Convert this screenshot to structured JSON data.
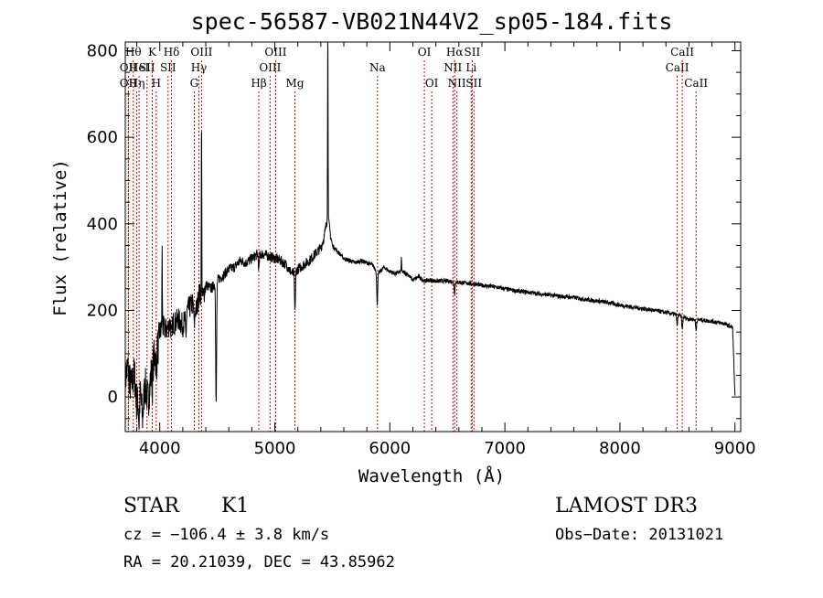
{
  "chart_data": {
    "type": "line",
    "title": "spec-56587-VB021N44V2_sp05-184.fits",
    "xlabel": "Wavelength (Å)",
    "ylabel": "Flux (relative)",
    "xlim": [
      3700,
      9050
    ],
    "ylim": [
      -80,
      820
    ],
    "xticks": [
      4000,
      5000,
      6000,
      7000,
      8000,
      9000
    ],
    "xtick_labels": [
      "4000",
      "5000",
      "6000",
      "7000",
      "8000",
      "9000"
    ],
    "yticks": [
      0,
      200,
      400,
      600,
      800
    ],
    "ytick_labels": [
      "0",
      "200",
      "400",
      "600",
      "800"
    ],
    "line_color": "#000000",
    "marker_color": "#cc0000",
    "series_anchors": [
      [
        3700,
        40
      ],
      [
        3720,
        70
      ],
      [
        3750,
        20
      ],
      [
        3780,
        55
      ],
      [
        3800,
        -20
      ],
      [
        3830,
        10
      ],
      [
        3850,
        -50
      ],
      [
        3870,
        30
      ],
      [
        3900,
        -10
      ],
      [
        3930,
        70
      ],
      [
        3960,
        100
      ],
      [
        3990,
        120
      ],
      [
        4000,
        150
      ],
      [
        4030,
        160
      ],
      [
        4060,
        155
      ],
      [
        4100,
        175
      ],
      [
        4130,
        170
      ],
      [
        4160,
        180
      ],
      [
        4200,
        165
      ],
      [
        4240,
        200
      ],
      [
        4280,
        215
      ],
      [
        4320,
        200
      ],
      [
        4340,
        240
      ],
      [
        4370,
        225
      ],
      [
        4400,
        260
      ],
      [
        4450,
        250
      ],
      [
        4500,
        270
      ],
      [
        4550,
        280
      ],
      [
        4600,
        295
      ],
      [
        4650,
        300
      ],
      [
        4700,
        315
      ],
      [
        4750,
        310
      ],
      [
        4800,
        320
      ],
      [
        4850,
        330
      ],
      [
        4900,
        330
      ],
      [
        4950,
        325
      ],
      [
        5000,
        320
      ],
      [
        5050,
        315
      ],
      [
        5100,
        305
      ],
      [
        5150,
        285
      ],
      [
        5200,
        295
      ],
      [
        5250,
        305
      ],
      [
        5300,
        315
      ],
      [
        5350,
        330
      ],
      [
        5400,
        345
      ],
      [
        5430,
        370
      ],
      [
        5460,
        420
      ],
      [
        5480,
        380
      ],
      [
        5500,
        350
      ],
      [
        5550,
        335
      ],
      [
        5600,
        320
      ],
      [
        5650,
        315
      ],
      [
        5700,
        310
      ],
      [
        5750,
        315
      ],
      [
        5800,
        310
      ],
      [
        5850,
        305
      ],
      [
        5900,
        285
      ],
      [
        5950,
        300
      ],
      [
        6000,
        290
      ],
      [
        6050,
        285
      ],
      [
        6100,
        290
      ],
      [
        6150,
        285
      ],
      [
        6200,
        270
      ],
      [
        6250,
        278
      ],
      [
        6300,
        268
      ],
      [
        6350,
        270
      ],
      [
        6400,
        268
      ],
      [
        6500,
        268
      ],
      [
        6600,
        265
      ],
      [
        6700,
        262
      ],
      [
        6800,
        258
      ],
      [
        6900,
        255
      ],
      [
        7000,
        250
      ],
      [
        7100,
        245
      ],
      [
        7200,
        242
      ],
      [
        7300,
        238
      ],
      [
        7400,
        235
      ],
      [
        7500,
        232
      ],
      [
        7600,
        230
      ],
      [
        7700,
        225
      ],
      [
        7800,
        222
      ],
      [
        7900,
        218
      ],
      [
        8000,
        212
      ],
      [
        8100,
        208
      ],
      [
        8200,
        204
      ],
      [
        8300,
        200
      ],
      [
        8400,
        195
      ],
      [
        8500,
        190
      ],
      [
        8600,
        180
      ],
      [
        8700,
        178
      ],
      [
        8800,
        175
      ],
      [
        8900,
        170
      ],
      [
        8980,
        160
      ],
      [
        9000,
        0
      ]
    ],
    "absorption_features": [
      {
        "x": 3820,
        "depth": 60
      },
      {
        "x": 3935,
        "depth": 50
      },
      {
        "x": 3970,
        "depth": 45
      },
      {
        "x": 4102,
        "depth": 40
      },
      {
        "x": 4227,
        "depth": 45
      },
      {
        "x": 4300,
        "depth": 40
      },
      {
        "x": 4490,
        "depth": 280
      },
      {
        "x": 4861,
        "depth": 35
      },
      {
        "x": 5175,
        "depth": 95
      },
      {
        "x": 5890,
        "depth": 75
      },
      {
        "x": 6563,
        "depth": 25
      },
      {
        "x": 8498,
        "depth": 25
      },
      {
        "x": 8542,
        "depth": 30
      },
      {
        "x": 8662,
        "depth": 25
      }
    ],
    "emission_features": [
      {
        "x": 4020,
        "height": 180
      },
      {
        "x": 4363,
        "height": 420
      },
      {
        "x": 5461,
        "height": 450
      },
      {
        "x": 6100,
        "height": 30
      }
    ],
    "line_markers": [
      {
        "x": 3727,
        "label": "OII",
        "row": 1
      },
      {
        "x": 3727,
        "label": "OII",
        "row": 2
      },
      {
        "x": 3770,
        "label": "Hθ",
        "row": 0
      },
      {
        "x": 3800,
        "label": "Hη",
        "row": 2
      },
      {
        "x": 3820,
        "label": "HeI",
        "row": 1
      },
      {
        "x": 3889,
        "label": "SII",
        "row": 1
      },
      {
        "x": 3934,
        "label": "K",
        "row": 0
      },
      {
        "x": 3969,
        "label": "H",
        "row": 2
      },
      {
        "x": 4102,
        "label": "Hδ",
        "row": 0
      },
      {
        "x": 4072,
        "label": "SII",
        "row": 1
      },
      {
        "x": 4300,
        "label": "G",
        "row": 2
      },
      {
        "x": 4340,
        "label": "Hγ",
        "row": 1
      },
      {
        "x": 4363,
        "label": "OIII",
        "row": 0
      },
      {
        "x": 4861,
        "label": "Hβ",
        "row": 2
      },
      {
        "x": 4959,
        "label": "OIII",
        "row": 1
      },
      {
        "x": 5007,
        "label": "OIII",
        "row": 0
      },
      {
        "x": 5175,
        "label": "Mg",
        "row": 2
      },
      {
        "x": 5893,
        "label": "Na",
        "row": 1
      },
      {
        "x": 6300,
        "label": "OI",
        "row": 0
      },
      {
        "x": 6364,
        "label": "OI",
        "row": 2
      },
      {
        "x": 6548,
        "label": "NII",
        "row": 1
      },
      {
        "x": 6563,
        "label": "Hα",
        "row": 0
      },
      {
        "x": 6583,
        "label": "NII",
        "row": 2
      },
      {
        "x": 6707,
        "label": "Li",
        "row": 1
      },
      {
        "x": 6716,
        "label": "SII",
        "row": 0
      },
      {
        "x": 6731,
        "label": "SII",
        "row": 2
      },
      {
        "x": 8498,
        "label": "CaII",
        "row": 1
      },
      {
        "x": 8542,
        "label": "CaII",
        "row": 0
      },
      {
        "x": 8662,
        "label": "CaII",
        "row": 2
      }
    ]
  },
  "footer": {
    "object_class": "STAR",
    "subclass": "K1",
    "survey": "LAMOST DR3",
    "redshift_text": "cz = −106.4 ± 3.8 km/s",
    "obs_date_text": "Obs−Date: 20131021",
    "coords_text": "RA =  20.21039, DEC =  43.85962"
  }
}
